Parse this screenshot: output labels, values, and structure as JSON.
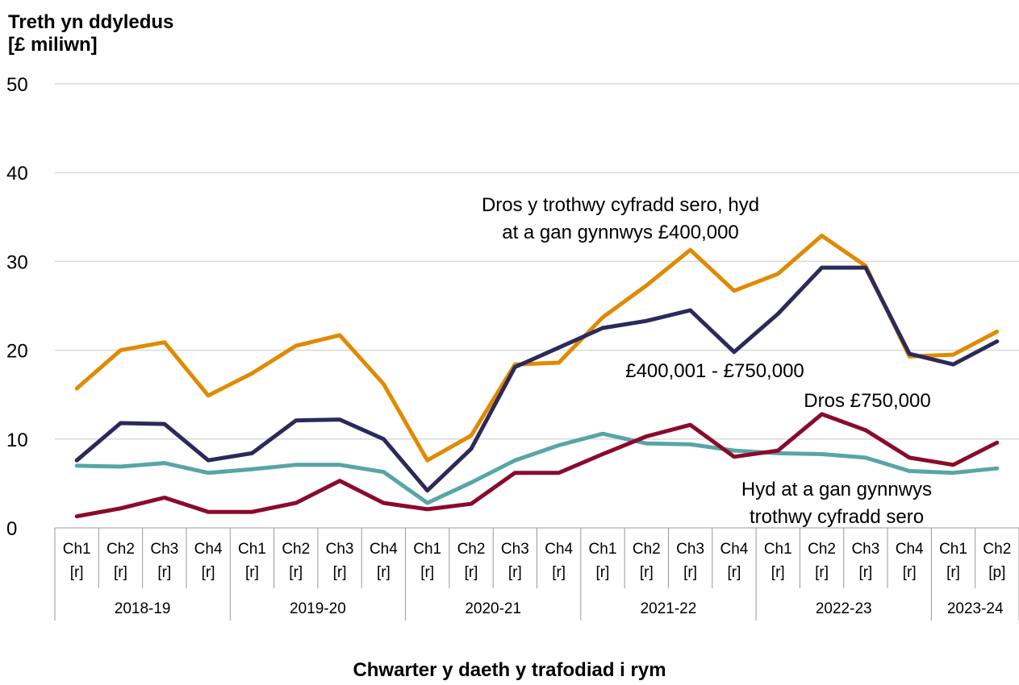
{
  "chart_data": {
    "type": "line",
    "ylabel_lines": [
      "Treth yn ddyledus",
      "[£ miliwn]"
    ],
    "xlabel": "Chwarter y daeth y trafodiad i rym",
    "ylim": [
      0,
      50
    ],
    "yticks": [
      0,
      10,
      20,
      30,
      40,
      50
    ],
    "grid": true,
    "quarters": [
      "Ch1",
      "Ch2",
      "Ch3",
      "Ch4",
      "Ch1",
      "Ch2",
      "Ch3",
      "Ch4",
      "Ch1",
      "Ch2",
      "Ch3",
      "Ch4",
      "Ch1",
      "Ch2",
      "Ch3",
      "Ch4",
      "Ch1",
      "Ch2",
      "Ch3",
      "Ch4",
      "Ch1",
      "Ch2"
    ],
    "flags": [
      "[r]",
      "[r]",
      "[r]",
      "[r]",
      "[r]",
      "[r]",
      "[r]",
      "[r]",
      "[r]",
      "[r]",
      "[r]",
      "[r]",
      "[r]",
      "[r]",
      "[r]",
      "[r]",
      "[r]",
      "[r]",
      "[r]",
      "[r]",
      "[r]",
      "[p]"
    ],
    "years": [
      {
        "label": "2018-19",
        "count": 4
      },
      {
        "label": "2019-20",
        "count": 4
      },
      {
        "label": "2020-21",
        "count": 4
      },
      {
        "label": "2021-22",
        "count": 4
      },
      {
        "label": "2022-23",
        "count": 4
      },
      {
        "label": "2023-24",
        "count": 2
      }
    ],
    "series": [
      {
        "name": "Hyd at a gan gynnwys trothwy cyfradd sero",
        "color": "#58a5a6",
        "values": [
          7.0,
          6.9,
          7.3,
          6.2,
          6.6,
          7.1,
          7.1,
          6.3,
          2.8,
          5.1,
          7.6,
          9.3,
          10.6,
          9.5,
          9.4,
          8.7,
          8.4,
          8.3,
          7.9,
          6.4,
          6.2,
          6.7
        ]
      },
      {
        "name": "Dros y trothwy cyfradd sero, hyd at a gan gynnwys £400,000",
        "color": "#e08a00",
        "values": [
          15.7,
          20.0,
          20.9,
          14.9,
          17.4,
          20.5,
          21.7,
          16.2,
          7.6,
          10.4,
          18.4,
          18.6,
          23.7,
          27.3,
          31.3,
          26.7,
          28.6,
          32.9,
          29.5,
          19.3,
          19.5,
          22.1
        ]
      },
      {
        "name": "£400,001 - £750,000",
        "color": "#2b2a5a",
        "values": [
          7.6,
          11.8,
          11.7,
          7.6,
          8.4,
          12.1,
          12.2,
          10.0,
          4.2,
          8.9,
          18.1,
          20.3,
          22.5,
          23.3,
          24.5,
          19.8,
          24.1,
          29.3,
          29.3,
          19.6,
          18.4,
          21.0
        ]
      },
      {
        "name": "Dros £750,000",
        "color": "#8a0b2c",
        "values": [
          1.3,
          2.2,
          3.4,
          1.8,
          1.8,
          2.8,
          5.3,
          2.8,
          2.1,
          2.7,
          6.2,
          6.2,
          8.3,
          10.3,
          11.6,
          8.0,
          8.7,
          12.8,
          11.0,
          7.9,
          7.1,
          9.6
        ]
      }
    ],
    "annotations": [
      {
        "series": 0,
        "lines": [
          "Hyd at a gan gynnwys",
          "trothwy cyfradd sero"
        ]
      },
      {
        "series": 1,
        "lines": [
          "Dros y trothwy cyfradd sero, hyd",
          "at a gan gynnwys £400,000"
        ]
      },
      {
        "series": 2,
        "lines": [
          "£400,001 - £750,000"
        ]
      },
      {
        "series": 3,
        "lines": [
          "Dros £750,000"
        ]
      }
    ]
  }
}
